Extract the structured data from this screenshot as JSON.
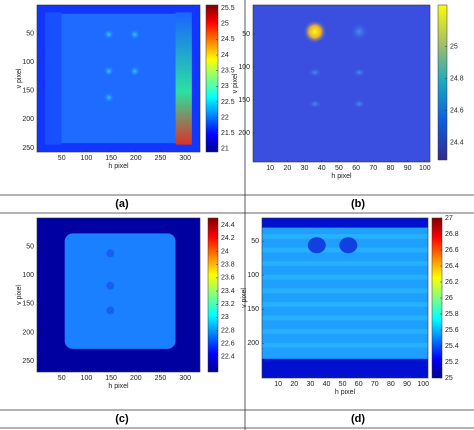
{
  "panels": [
    {
      "caption": "(a)",
      "x_label": "h pixel",
      "y_label": "v pixel",
      "xlim": [
        0,
        330
      ],
      "xticks": [
        50,
        100,
        150,
        200,
        250,
        300
      ],
      "ylim": [
        0,
        257
      ],
      "yticks": [
        50,
        100,
        150,
        200,
        250
      ],
      "clim": [
        20.9,
        25.6
      ],
      "cticks": [
        21,
        21.5,
        22,
        22.5,
        23,
        23.5,
        24,
        24.5,
        25,
        25.5
      ],
      "colormap": "jet"
    },
    {
      "caption": "(b)",
      "x_label": "h pixel",
      "y_label": "v pixel",
      "xlim": [
        0,
        103
      ],
      "xticks": [
        10,
        20,
        30,
        40,
        50,
        60,
        70,
        80,
        90,
        100
      ],
      "ylim": [
        6,
        244
      ],
      "yticks": [
        50,
        100,
        150,
        200
      ],
      "clim": [
        24.29,
        25.26
      ],
      "cticks": [
        24.4,
        24.6,
        24.8,
        25
      ],
      "colormap": "parula"
    },
    {
      "caption": "(c)",
      "x_label": "h pixel",
      "y_label": "v pixel",
      "xlim": [
        0,
        330
      ],
      "xticks": [
        50,
        100,
        150,
        200,
        250,
        300
      ],
      "ylim": [
        0,
        269
      ],
      "yticks": [
        50,
        100,
        150,
        200,
        250
      ],
      "clim": [
        22.17,
        24.51
      ],
      "cticks": [
        22.4,
        22.6,
        22.8,
        23,
        23.2,
        23.4,
        23.6,
        23.8,
        24,
        24.2,
        24.4
      ],
      "colormap": "jet"
    },
    {
      "caption": "(d)",
      "x_label": "h pixel",
      "y_label": "v pixel",
      "xlim": [
        0,
        103
      ],
      "xticks": [
        10,
        20,
        30,
        40,
        50,
        60,
        70,
        80,
        90,
        100
      ],
      "ylim": [
        16,
        251
      ],
      "yticks": [
        50,
        100,
        150,
        200
      ],
      "clim": [
        25,
        27
      ],
      "cticks": [
        25,
        25.2,
        25.4,
        25.6,
        25.8,
        26,
        26.2,
        26.4,
        26.6,
        26.8,
        27
      ],
      "colormap": "jet"
    }
  ]
}
